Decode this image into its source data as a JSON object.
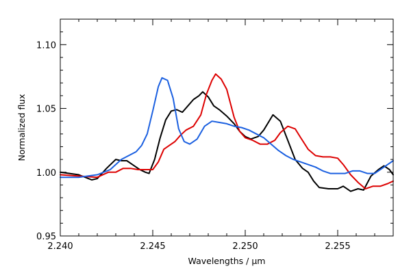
{
  "chart_data": {
    "type": "line",
    "xlabel": "Wavelengths / μm",
    "ylabel": "Normalized flux",
    "xlim": [
      2.24,
      2.258
    ],
    "ylim": [
      0.95,
      1.12
    ],
    "x_ticks": [
      2.24,
      2.245,
      2.25,
      2.255
    ],
    "x_tick_labels": [
      "2.240",
      "2.245",
      "2.250",
      "2.255"
    ],
    "y_ticks": [
      0.95,
      1.0,
      1.05,
      1.1
    ],
    "y_tick_labels": [
      "0.95",
      "1.00",
      "1.05",
      "1.10"
    ],
    "grid": false,
    "legend": "none",
    "series": [
      {
        "color": "#000000",
        "points": [
          [
            2.24,
            1.0
          ],
          [
            2.241,
            0.998
          ],
          [
            2.2417,
            0.994
          ],
          [
            2.242,
            0.995
          ],
          [
            2.2425,
            1.003
          ],
          [
            2.243,
            1.01
          ],
          [
            2.2433,
            1.009
          ],
          [
            2.2436,
            1.009
          ],
          [
            2.244,
            1.005
          ],
          [
            2.2443,
            1.002
          ],
          [
            2.2446,
            1.0
          ],
          [
            2.2448,
            0.999
          ],
          [
            2.2451,
            1.01
          ],
          [
            2.2454,
            1.027
          ],
          [
            2.2457,
            1.041
          ],
          [
            2.246,
            1.048
          ],
          [
            2.2463,
            1.049
          ],
          [
            2.2466,
            1.047
          ],
          [
            2.2469,
            1.052
          ],
          [
            2.2472,
            1.057
          ],
          [
            2.2475,
            1.06
          ],
          [
            2.2477,
            1.063
          ],
          [
            2.248,
            1.059
          ],
          [
            2.2483,
            1.052
          ],
          [
            2.2486,
            1.049
          ],
          [
            2.249,
            1.044
          ],
          [
            2.2494,
            1.038
          ],
          [
            2.2497,
            1.032
          ],
          [
            2.25,
            1.028
          ],
          [
            2.2503,
            1.026
          ],
          [
            2.2507,
            1.028
          ],
          [
            2.251,
            1.033
          ],
          [
            2.2515,
            1.045
          ],
          [
            2.2519,
            1.04
          ],
          [
            2.2523,
            1.025
          ],
          [
            2.2527,
            1.01
          ],
          [
            2.2531,
            1.003
          ],
          [
            2.2534,
            1.0
          ],
          [
            2.2537,
            0.993
          ],
          [
            2.254,
            0.988
          ],
          [
            2.2545,
            0.987
          ],
          [
            2.255,
            0.987
          ],
          [
            2.2553,
            0.989
          ],
          [
            2.2557,
            0.985
          ],
          [
            2.2561,
            0.987
          ],
          [
            2.2564,
            0.986
          ],
          [
            2.2568,
            0.997
          ],
          [
            2.2572,
            1.002
          ],
          [
            2.2575,
            1.005
          ],
          [
            2.2578,
            1.002
          ],
          [
            2.258,
            0.998
          ]
        ]
      },
      {
        "color": "#dd0000",
        "points": [
          [
            2.24,
            0.998
          ],
          [
            2.241,
            0.997
          ],
          [
            2.242,
            0.996
          ],
          [
            2.2426,
            1.0
          ],
          [
            2.243,
            1.0
          ],
          [
            2.2434,
            1.003
          ],
          [
            2.2438,
            1.003
          ],
          [
            2.2442,
            1.002
          ],
          [
            2.2446,
            1.002
          ],
          [
            2.245,
            1.002
          ],
          [
            2.2453,
            1.008
          ],
          [
            2.2456,
            1.018
          ],
          [
            2.2459,
            1.021
          ],
          [
            2.2462,
            1.024
          ],
          [
            2.2465,
            1.029
          ],
          [
            2.2468,
            1.033
          ],
          [
            2.2472,
            1.036
          ],
          [
            2.2476,
            1.045
          ],
          [
            2.2479,
            1.061
          ],
          [
            2.2482,
            1.072
          ],
          [
            2.2484,
            1.077
          ],
          [
            2.2487,
            1.073
          ],
          [
            2.249,
            1.065
          ],
          [
            2.2494,
            1.043
          ],
          [
            2.2497,
            1.032
          ],
          [
            2.25,
            1.027
          ],
          [
            2.2504,
            1.025
          ],
          [
            2.2508,
            1.022
          ],
          [
            2.2512,
            1.022
          ],
          [
            2.2516,
            1.025
          ],
          [
            2.2519,
            1.031
          ],
          [
            2.2523,
            1.036
          ],
          [
            2.2527,
            1.034
          ],
          [
            2.253,
            1.027
          ],
          [
            2.2534,
            1.018
          ],
          [
            2.2538,
            1.013
          ],
          [
            2.2542,
            1.012
          ],
          [
            2.2546,
            1.012
          ],
          [
            2.255,
            1.011
          ],
          [
            2.2553,
            1.006
          ],
          [
            2.2557,
            0.998
          ],
          [
            2.2561,
            0.992
          ],
          [
            2.2565,
            0.987
          ],
          [
            2.2569,
            0.989
          ],
          [
            2.2573,
            0.989
          ],
          [
            2.2577,
            0.991
          ],
          [
            2.258,
            0.993
          ]
        ]
      },
      {
        "color": "#1a5fe0",
        "points": [
          [
            2.24,
            0.996
          ],
          [
            2.241,
            0.996
          ],
          [
            2.242,
            0.998
          ],
          [
            2.2427,
            1.002
          ],
          [
            2.2433,
            1.01
          ],
          [
            2.2437,
            1.013
          ],
          [
            2.2441,
            1.016
          ],
          [
            2.2444,
            1.021
          ],
          [
            2.2447,
            1.03
          ],
          [
            2.245,
            1.048
          ],
          [
            2.2453,
            1.067
          ],
          [
            2.2455,
            1.074
          ],
          [
            2.2458,
            1.072
          ],
          [
            2.2461,
            1.058
          ],
          [
            2.2464,
            1.034
          ],
          [
            2.2467,
            1.024
          ],
          [
            2.247,
            1.022
          ],
          [
            2.2474,
            1.026
          ],
          [
            2.2478,
            1.036
          ],
          [
            2.2482,
            1.04
          ],
          [
            2.2486,
            1.039
          ],
          [
            2.249,
            1.038
          ],
          [
            2.2494,
            1.036
          ],
          [
            2.2498,
            1.035
          ],
          [
            2.2502,
            1.033
          ],
          [
            2.2506,
            1.03
          ],
          [
            2.251,
            1.027
          ],
          [
            2.2514,
            1.022
          ],
          [
            2.2518,
            1.017
          ],
          [
            2.2522,
            1.013
          ],
          [
            2.2526,
            1.01
          ],
          [
            2.253,
            1.008
          ],
          [
            2.2534,
            1.006
          ],
          [
            2.2538,
            1.004
          ],
          [
            2.2542,
            1.001
          ],
          [
            2.2546,
            0.999
          ],
          [
            2.255,
            0.999
          ],
          [
            2.2554,
            0.999
          ],
          [
            2.2558,
            1.001
          ],
          [
            2.2562,
            1.001
          ],
          [
            2.2566,
            0.999
          ],
          [
            2.257,
            0.999
          ],
          [
            2.2574,
            1.003
          ],
          [
            2.2577,
            1.006
          ],
          [
            2.258,
            1.009
          ]
        ]
      }
    ]
  }
}
